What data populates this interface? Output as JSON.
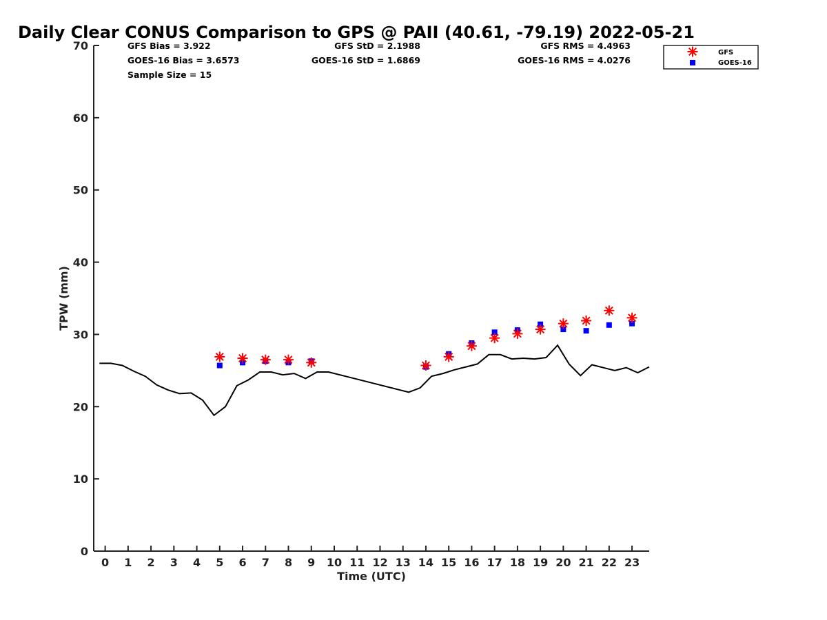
{
  "chart_data": {
    "type": "scatter",
    "title": "Daily Clear CONUS Comparison to GPS @ PAII (40.61, -79.19) 2022-05-21",
    "xlabel": "Time (UTC)",
    "ylabel": "TPW (mm)",
    "xlim": [
      -0.5,
      23.75
    ],
    "ylim": [
      0,
      70
    ],
    "xticks": [
      0,
      1,
      2,
      3,
      4,
      5,
      6,
      7,
      8,
      9,
      10,
      11,
      12,
      13,
      14,
      15,
      16,
      17,
      18,
      19,
      20,
      21,
      22,
      23
    ],
    "yticks": [
      0,
      10,
      20,
      30,
      40,
      50,
      60,
      70
    ],
    "grid": false,
    "legend_position": "top-right",
    "stats": {
      "gfs_bias": "GFS Bias = 3.922",
      "goes_bias": "GOES-16 Bias = 3.6573",
      "sample_size": "Sample Size = 15",
      "gfs_std": "GFS StD = 2.1988",
      "goes_std": "GOES-16 StD = 1.6869",
      "gfs_rms": "GFS RMS = 4.4963",
      "goes_rms": "GOES-16 RMS = 4.0276"
    },
    "series": [
      {
        "name": "GFS",
        "marker": "asterisk",
        "color": "#ff0000",
        "x": [
          5,
          6,
          7,
          8,
          9,
          14,
          15,
          16,
          17,
          18,
          19,
          20,
          21,
          22,
          23
        ],
        "y": [
          26.9,
          26.7,
          26.5,
          26.5,
          26.1,
          25.7,
          26.9,
          28.4,
          29.5,
          30.1,
          30.7,
          31.5,
          31.9,
          33.3,
          32.3
        ]
      },
      {
        "name": "GOES-16",
        "marker": "square",
        "color": "#0000ff",
        "x": [
          5,
          6,
          7,
          8,
          9,
          14,
          15,
          16,
          17,
          18,
          19,
          20,
          21,
          22,
          23
        ],
        "y": [
          25.7,
          26.1,
          26.3,
          26.1,
          26.3,
          25.5,
          27.3,
          28.8,
          30.3,
          30.6,
          31.4,
          30.7,
          30.5,
          31.3,
          31.5
        ]
      },
      {
        "marker": "line",
        "color": "#000000",
        "x": [
          -0.25,
          0.25,
          0.75,
          1.25,
          1.75,
          2.25,
          2.75,
          3.25,
          3.75,
          4.25,
          4.75,
          5.25,
          5.75,
          6.25,
          6.75,
          7.25,
          7.75,
          8.25,
          8.75,
          9.25,
          9.75,
          13.25,
          13.75,
          14.25,
          14.75,
          15.25,
          15.75,
          16.25,
          16.75,
          17.25,
          17.75,
          18.25,
          18.75,
          19.25,
          19.75,
          20.25,
          20.75,
          21.25,
          21.75,
          22.25,
          22.75,
          23.25,
          23.75
        ],
        "y": [
          26.0,
          26.0,
          25.7,
          24.9,
          24.2,
          23.0,
          22.3,
          21.8,
          21.9,
          20.9,
          18.8,
          20.0,
          22.9,
          23.7,
          24.8,
          24.8,
          24.4,
          24.6,
          23.9,
          24.8,
          24.8,
          22.0,
          22.6,
          24.2,
          24.6,
          25.1,
          25.5,
          25.9,
          27.2,
          27.2,
          26.6,
          26.7,
          26.6,
          26.8,
          28.5,
          25.9,
          24.3,
          25.8,
          25.4,
          25.0,
          25.4,
          24.7,
          25.5
        ]
      }
    ]
  }
}
